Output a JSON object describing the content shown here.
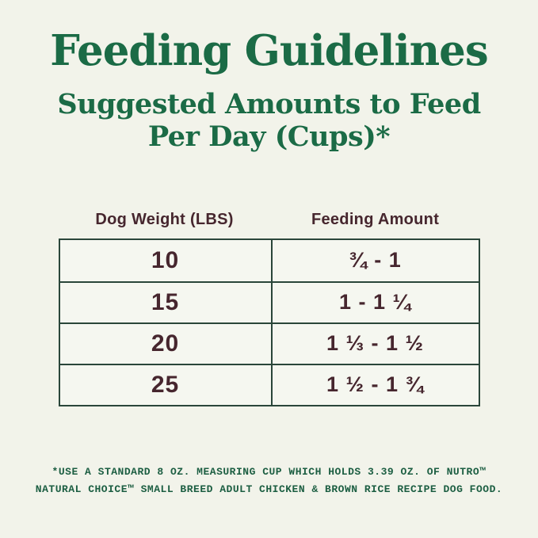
{
  "page": {
    "title": "Feeding Guidelines",
    "subtitle_line1": "Suggested Amounts to Feed",
    "subtitle_line2": "Per Day (Cups)*"
  },
  "table": {
    "headers": [
      "Dog Weight (LBS)",
      "Feeding Amount"
    ],
    "rows": [
      {
        "weight": "10",
        "amount": "¾ - 1"
      },
      {
        "weight": "15",
        "amount": "1 - 1 ¼"
      },
      {
        "weight": "20",
        "amount": "1 ⅓ - 1 ½"
      },
      {
        "weight": "25",
        "amount": "1 ½ - 1 ¾"
      }
    ]
  },
  "footnote": {
    "line1": "*USE A STANDARD 8 OZ. MEASURING CUP WHICH HOLDS 3.39 OZ. OF NUTRO™",
    "line2": "NATURAL CHOICE™ SMALL BREED ADULT CHICKEN & BROWN RICE RECIPE DOG FOOD."
  },
  "colors": {
    "background": "#f2f3ea",
    "cell_background": "#f5f7f0",
    "title_green": "#1b6b46",
    "footnote_green": "#1c5e42",
    "table_border_green": "#2a463a",
    "text_brown": "#46262e"
  },
  "chart_data": {
    "type": "table",
    "title": "Feeding Guidelines",
    "subtitle": "Suggested Amounts to Feed Per Day (Cups)*",
    "columns": [
      "Dog Weight (LBS)",
      "Feeding Amount"
    ],
    "rows": [
      [
        "10",
        "¾ - 1"
      ],
      [
        "15",
        "1 - 1 ¼"
      ],
      [
        "20",
        "1 ⅓ - 1 ½"
      ],
      [
        "25",
        "1 ½ - 1 ¾"
      ]
    ],
    "footnote": "*USE A STANDARD 8 OZ. MEASURING CUP WHICH HOLDS 3.39 OZ. OF NUTRO™ NATURAL CHOICE™ SMALL BREED ADULT CHICKEN & BROWN RICE RECIPE DOG FOOD."
  }
}
